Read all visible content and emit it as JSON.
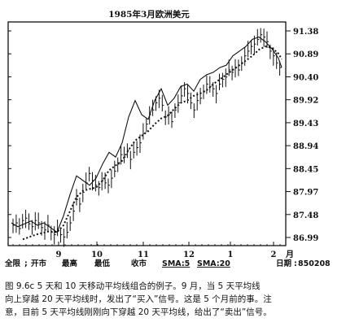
{
  "chart_data": {
    "type": "line",
    "title": "1985年3月欧洲美元",
    "y_ticks": [
      "91.38",
      "90.89",
      "90.40",
      "89.92",
      "89.43",
      "88.94",
      "88.45",
      "87.97",
      "87.48",
      "86.99"
    ],
    "x_ticks": [
      "9",
      "10",
      "11",
      "12",
      "1",
      "2",
      "月"
    ],
    "ylim": [
      86.99,
      91.38
    ],
    "grid": false,
    "series": [
      {
        "name": "SMA:5",
        "x": [
          0,
          8,
          16,
          24,
          32,
          40,
          48,
          56,
          64,
          72,
          80,
          88,
          96,
          104,
          112,
          120,
          128,
          136,
          144,
          152,
          160,
          168,
          176,
          184,
          192,
          200,
          208,
          216,
          224,
          232,
          240,
          248,
          256,
          264,
          272,
          280,
          288,
          296,
          304,
          312,
          320,
          328,
          332
        ],
        "values": [
          87.3,
          87.22,
          87.28,
          87.34,
          87.25,
          87.3,
          87.2,
          87.1,
          87.45,
          87.9,
          88.3,
          88.2,
          88.1,
          88.25,
          88.55,
          88.8,
          88.7,
          89.0,
          89.55,
          89.9,
          89.6,
          89.5,
          89.9,
          90.15,
          89.8,
          89.95,
          90.2,
          90.25,
          90.1,
          90.35,
          90.45,
          90.5,
          90.6,
          90.65,
          90.85,
          90.95,
          91.05,
          91.2,
          91.25,
          91.15,
          91.0,
          90.8,
          90.6
        ]
      },
      {
        "name": "SMA:20",
        "x": [
          14,
          30,
          46,
          56,
          64,
          72,
          80,
          88,
          96,
          104,
          112,
          120,
          128,
          136,
          144,
          152,
          160,
          168,
          176,
          184,
          192,
          200,
          208,
          216,
          224,
          232,
          240,
          248,
          256,
          264,
          272,
          280,
          288,
          296,
          304,
          312,
          320,
          328,
          332
        ],
        "values": [
          86.95,
          87.05,
          87.12,
          87.1,
          87.25,
          87.55,
          87.85,
          87.98,
          88.02,
          88.05,
          88.2,
          88.42,
          88.52,
          88.62,
          88.85,
          89.05,
          89.15,
          89.25,
          89.4,
          89.52,
          89.58,
          89.72,
          89.85,
          89.9,
          90.0,
          90.05,
          90.12,
          90.25,
          90.35,
          90.45,
          90.55,
          90.65,
          90.75,
          90.85,
          90.98,
          91.05,
          91.02,
          90.9,
          90.78
        ]
      }
    ],
    "bars_close": [
      87.25,
      87.3,
      87.18,
      87.35,
      87.4,
      87.28,
      87.22,
      87.35,
      87.3,
      87.2,
      87.15,
      87.25,
      87.1,
      87.05,
      87.15,
      87.05,
      87.0,
      87.1,
      87.3,
      87.55,
      87.8,
      87.7,
      87.95,
      88.15,
      88.35,
      88.2,
      88.1,
      88.05,
      88.2,
      88.15,
      88.1,
      88.25,
      88.4,
      88.55,
      88.75,
      88.7,
      88.85,
      88.65,
      88.8,
      88.9,
      89.0,
      89.2,
      89.4,
      89.6,
      89.7,
      89.85,
      89.95,
      89.8,
      89.55,
      89.6,
      89.45,
      89.7,
      89.85,
      90.0,
      90.15,
      90.05,
      89.85,
      89.7,
      89.9,
      89.95,
      90.1,
      90.25,
      90.2,
      90.15,
      90.05,
      90.25,
      90.35,
      90.4,
      90.55,
      90.5,
      90.6,
      90.55,
      90.7,
      90.85,
      90.95,
      91.05,
      91.1,
      91.2,
      91.3,
      91.25,
      91.15,
      90.95,
      90.85,
      90.7,
      90.6
    ]
  },
  "legend_row": {
    "label_full": "全限",
    "label_open": "开市",
    "label_high": "最高",
    "label_low": "最低",
    "label_close": "收市",
    "label_sma5": "SMA:5",
    "label_sma20": "SMA:20",
    "label_date": "日期",
    "date_value": "850208"
  },
  "caption": {
    "line1": "图 9.6c   5 天和 10 天移动平均线组合的例子。9 月，当 5 天平均线",
    "line2": "向上穿越 20 天平均线时，发出了“买入”信号。这是 5 个月前的事。注",
    "line3": "意，目前 5 天平均线刚刚向下穿越 20 天平均线，给出了“卖出”信号。"
  }
}
